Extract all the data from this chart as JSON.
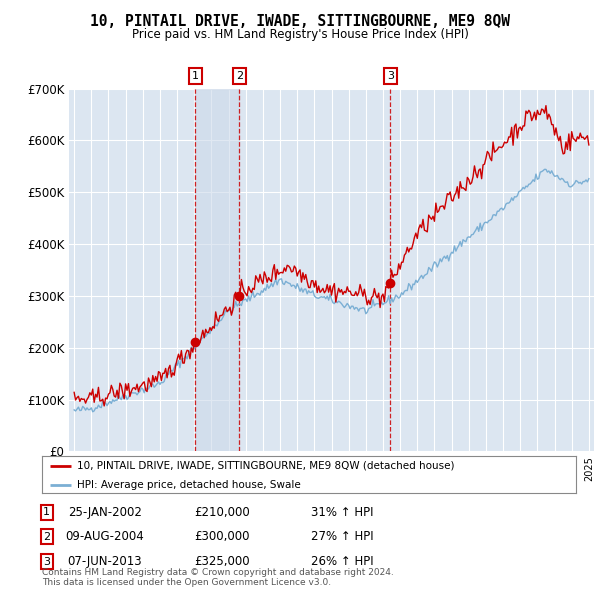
{
  "title": "10, PINTAIL DRIVE, IWADE, SITTINGBOURNE, ME9 8QW",
  "subtitle": "Price paid vs. HM Land Registry's House Price Index (HPI)",
  "ylim": [
    0,
    700000
  ],
  "yticks": [
    0,
    100000,
    200000,
    300000,
    400000,
    500000,
    600000,
    700000
  ],
  "ytick_labels": [
    "£0",
    "£100K",
    "£200K",
    "£300K",
    "£400K",
    "£500K",
    "£600K",
    "£700K"
  ],
  "plot_bg_color": "#dce6f1",
  "grid_color": "#ffffff",
  "red_line_color": "#cc0000",
  "blue_line_color": "#7bafd4",
  "shade_color": "#ccd9ea",
  "sale_points": [
    {
      "date_num": 2002.07,
      "price": 210000,
      "label": "1"
    },
    {
      "date_num": 2004.62,
      "price": 300000,
      "label": "2"
    },
    {
      "date_num": 2013.43,
      "price": 325000,
      "label": "3"
    }
  ],
  "shade_region": [
    2002.07,
    2004.62
  ],
  "legend_red_label": "10, PINTAIL DRIVE, IWADE, SITTINGBOURNE, ME9 8QW (detached house)",
  "legend_blue_label": "HPI: Average price, detached house, Swale",
  "table_rows": [
    [
      "1",
      "25-JAN-2002",
      "£210,000",
      "31% ↑ HPI"
    ],
    [
      "2",
      "09-AUG-2004",
      "£300,000",
      "27% ↑ HPI"
    ],
    [
      "3",
      "07-JUN-2013",
      "£325,000",
      "26% ↑ HPI"
    ]
  ],
  "footnote": "Contains HM Land Registry data © Crown copyright and database right 2024.\nThis data is licensed under the Open Government Licence v3.0.",
  "vline_color": "#cc0000",
  "box_color": "#cc0000",
  "xlim_left": 1994.7,
  "xlim_right": 2025.3
}
